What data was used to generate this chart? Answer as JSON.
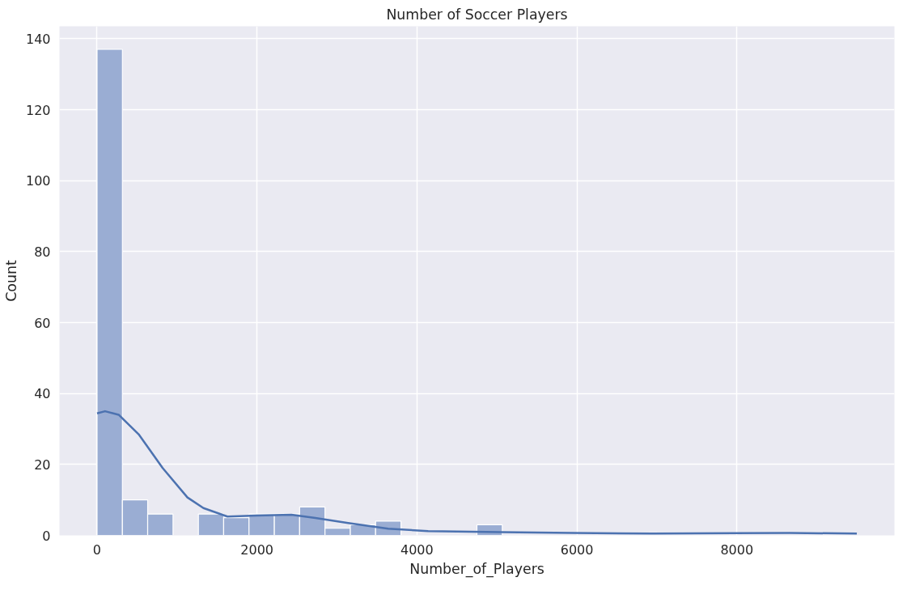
{
  "chart_data": {
    "type": "histogram",
    "title": "Number of Soccer Players",
    "xlabel": "Number_of_Players",
    "ylabel": "Count",
    "bins": [
      0,
      317,
      633,
      950,
      1267,
      1583,
      1900,
      2217,
      2533,
      2850,
      3167,
      3483,
      3800,
      4117,
      4433,
      4750,
      5067,
      5383,
      5700,
      6017,
      6333,
      6650,
      6967,
      7283,
      7600,
      7917,
      8233,
      8550,
      8867,
      9183,
      9500
    ],
    "values": [
      137,
      10,
      6,
      0,
      6,
      5,
      6,
      6,
      8,
      2,
      3,
      4,
      0,
      0,
      0,
      3,
      0,
      0,
      0,
      0,
      0,
      0,
      0,
      0,
      0,
      0,
      0,
      null,
      0,
      null
    ],
    "color": "#9aadd3",
    "series": [
      {
        "type": "line",
        "color": "#4c72b0",
        "x": [
          0,
          100,
          270,
          520,
          820,
          1130,
          1330,
          1630,
          2000,
          2430,
          2730,
          3140,
          3640,
          4140,
          5045,
          5950,
          6950,
          7960,
          8660,
          9500
        ],
        "values": [
          34.4,
          35,
          34,
          28.5,
          19,
          10.7,
          7.7,
          5.3,
          5.6,
          5.8,
          4.9,
          3.5,
          1.9,
          1.2,
          0.9,
          0.7,
          0.5,
          0.6,
          0.7,
          0.5
        ]
      }
    ],
    "xlim": [
      -470,
      9970
    ],
    "ylim": [
      0,
      143.5
    ],
    "xticks": [
      0,
      2000,
      4000,
      6000,
      8000
    ],
    "yticks": [
      0,
      20,
      40,
      60,
      80,
      100,
      120,
      140
    ],
    "grid": true
  }
}
